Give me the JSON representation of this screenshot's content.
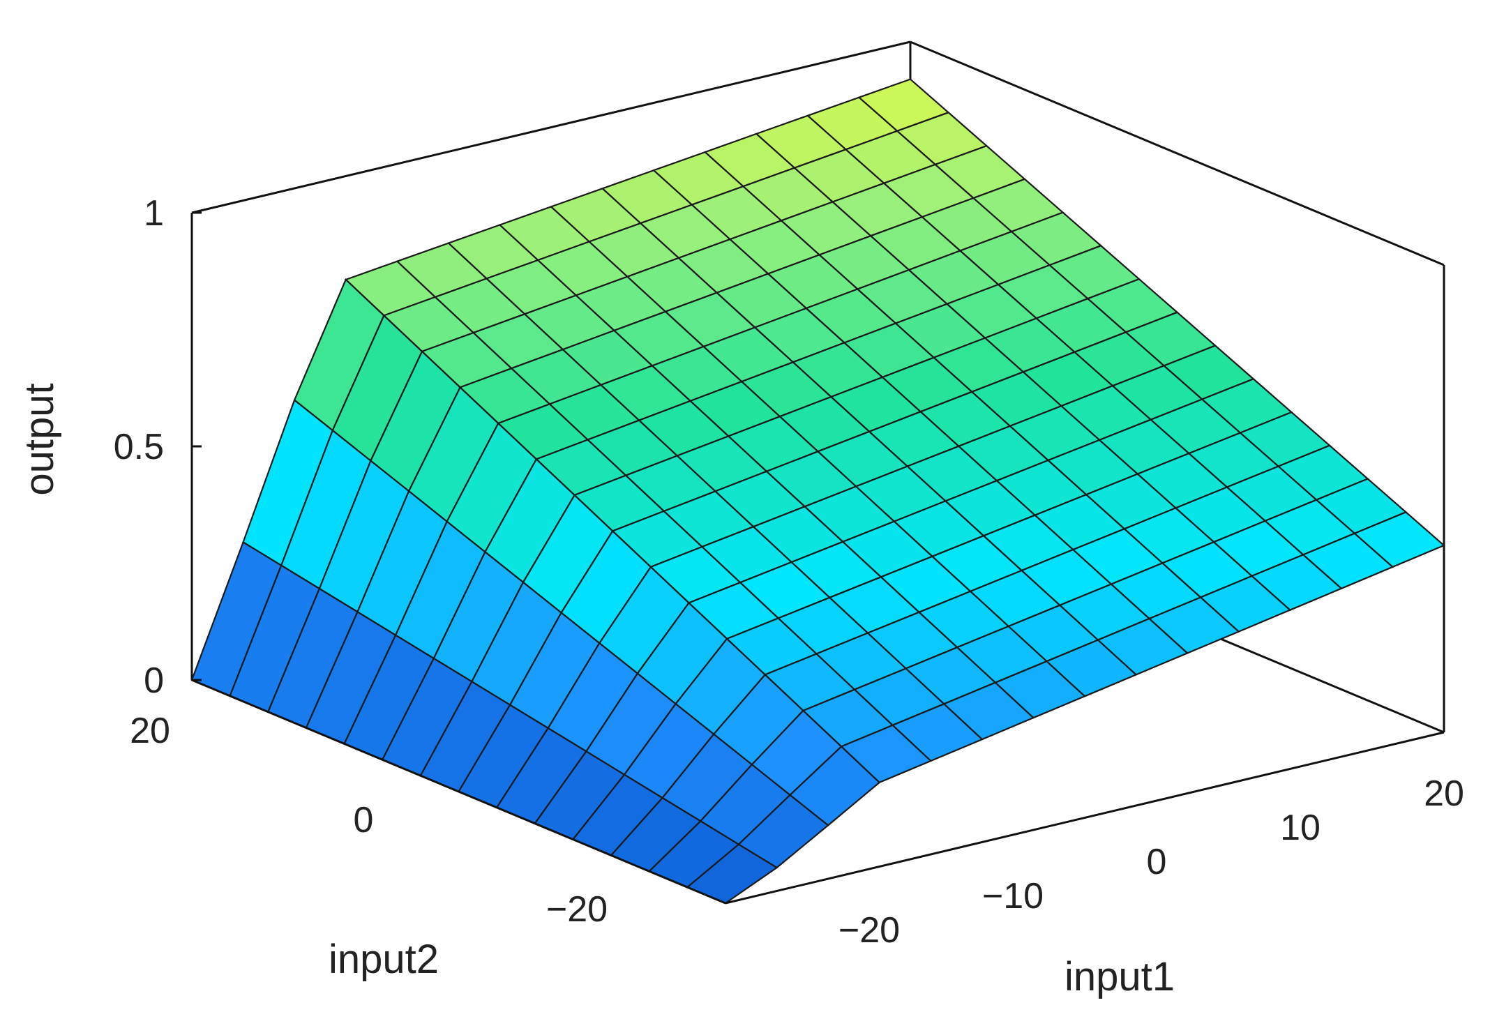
{
  "chart_data": {
    "type": "surface",
    "xlabel": "input1",
    "ylabel": "input2",
    "zlabel": "output",
    "xlim": [
      -30,
      20
    ],
    "ylim": [
      -30,
      20
    ],
    "zlim": [
      0,
      1
    ],
    "x_ticks": [
      {
        "value": -20,
        "label": "−20"
      },
      {
        "value": -10,
        "label": "−10"
      },
      {
        "value": 0,
        "label": "0"
      },
      {
        "value": 10,
        "label": "10"
      },
      {
        "value": 20,
        "label": "20"
      }
    ],
    "y_ticks": [
      {
        "value": 20,
        "label": "20"
      },
      {
        "value": 0,
        "label": "0"
      },
      {
        "value": -20,
        "label": "−20"
      }
    ],
    "z_ticks": [
      {
        "value": 0,
        "label": "0"
      },
      {
        "value": 0.5,
        "label": "0.5"
      },
      {
        "value": 1,
        "label": "1"
      }
    ],
    "grid_points": 15,
    "colormap": [
      "#0f5fd6",
      "#1e90ff",
      "#00e6ff",
      "#22e39a",
      "#9ef07a",
      "#ffff33"
    ],
    "surface_description": "output rises from 0 at low input1 / low input2 toward 1 at high input2; approx output = 0.5 + 0.5*clip(input2/20 ...)"
  }
}
